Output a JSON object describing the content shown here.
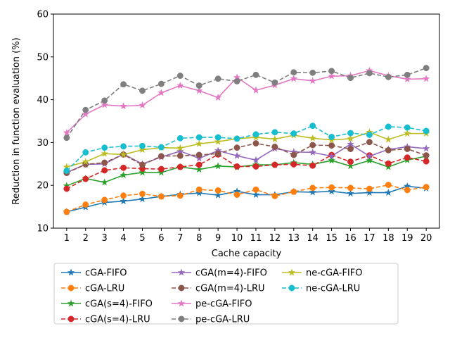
{
  "chart_data": {
    "type": "line",
    "title": "",
    "xlabel": "Cache capacity",
    "ylabel": "Reduction in function evaluation (%)",
    "x": [
      1,
      2,
      3,
      4,
      5,
      6,
      7,
      8,
      9,
      10,
      11,
      12,
      13,
      14,
      15,
      16,
      17,
      18,
      19,
      20
    ],
    "xlim": [
      0.3,
      20.7
    ],
    "ylim": [
      10,
      60
    ],
    "yticks": [
      10,
      20,
      30,
      40,
      50,
      60
    ],
    "grid": false,
    "legend_placement": "below plot, 3 columns",
    "series": [
      {
        "name": "cGA-FIFO",
        "color": "#1f77b4",
        "linestyle": "solid",
        "marker": "star",
        "values": [
          13.8,
          14.9,
          16.0,
          16.3,
          16.8,
          17.4,
          17.9,
          18.2,
          17.7,
          18.6,
          17.8,
          17.8,
          18.5,
          18.4,
          18.6,
          18.1,
          18.3,
          18.3,
          19.8,
          19.3
        ]
      },
      {
        "name": "cGA-LRU",
        "color": "#ff7f0e",
        "linestyle": "dashed",
        "marker": "circle",
        "values": [
          13.8,
          15.5,
          16.6,
          17.6,
          18.0,
          17.4,
          17.6,
          19.0,
          18.8,
          17.8,
          19.0,
          17.5,
          18.5,
          19.4,
          19.5,
          19.4,
          19.2,
          20.1,
          18.9,
          19.6
        ]
      },
      {
        "name": "cGA(s=4)-FIFO",
        "color": "#2ca02c",
        "linestyle": "solid",
        "marker": "star",
        "values": [
          19.9,
          21.6,
          20.7,
          22.4,
          23.0,
          23.0,
          24.3,
          23.7,
          24.5,
          24.3,
          24.8,
          24.8,
          25.3,
          24.9,
          25.8,
          24.5,
          25.8,
          24.3,
          25.9,
          26.8
        ]
      },
      {
        "name": "cGA(s=4)-LRU",
        "color": "#d62728",
        "linestyle": "dashed",
        "marker": "circle",
        "values": [
          19.2,
          21.5,
          23.5,
          24.1,
          23.9,
          23.8,
          24.3,
          24.8,
          27.2,
          24.4,
          24.4,
          24.8,
          24.9,
          24.6,
          27.1,
          25.5,
          27.0,
          25.1,
          26.5,
          25.6
        ]
      },
      {
        "name": "cGA(m=4)-FIFO",
        "color": "#9467bd",
        "linestyle": "solid",
        "marker": "star",
        "values": [
          23.0,
          24.9,
          25.0,
          27.3,
          25.0,
          26.6,
          28.0,
          26.3,
          28.1,
          26.9,
          25.9,
          28.6,
          27.8,
          27.7,
          26.8,
          29.6,
          26.8,
          28.4,
          29.0,
          28.6
        ]
      },
      {
        "name": "cGA(m=4)-LRU",
        "color": "#8c564b",
        "linestyle": "dashed",
        "marker": "circle",
        "values": [
          22.9,
          24.9,
          25.3,
          27.2,
          24.8,
          26.8,
          26.9,
          27.1,
          27.4,
          28.8,
          29.8,
          29.0,
          27.1,
          29.4,
          29.3,
          28.5,
          30.1,
          28.2,
          28.5,
          27.0
        ]
      },
      {
        "name": "pe-cGA-FIFO",
        "color": "#e377c2",
        "linestyle": "solid",
        "marker": "star",
        "values": [
          32.3,
          36.6,
          38.8,
          38.5,
          38.7,
          41.6,
          43.3,
          42.1,
          40.5,
          45.2,
          42.2,
          43.4,
          44.9,
          44.4,
          45.5,
          45.6,
          46.8,
          45.6,
          44.8,
          44.9
        ]
      },
      {
        "name": "pe-cGA-LRU",
        "color": "#7f7f7f",
        "linestyle": "dashed",
        "marker": "circle",
        "values": [
          31.1,
          37.6,
          39.8,
          43.6,
          42.1,
          43.7,
          45.6,
          43.3,
          44.9,
          44.3,
          45.8,
          44.0,
          46.4,
          46.3,
          46.7,
          45.1,
          46.2,
          45.3,
          45.8,
          47.4
        ]
      },
      {
        "name": "ne-cGA-FIFO",
        "color": "#bcbd22",
        "linestyle": "solid",
        "marker": "star",
        "values": [
          24.3,
          25.5,
          27.4,
          27.2,
          28.3,
          28.8,
          28.7,
          29.7,
          30.2,
          30.9,
          31.2,
          30.8,
          31.7,
          31.0,
          30.6,
          30.9,
          32.4,
          30.7,
          32.1,
          32.1
        ]
      },
      {
        "name": "ne-cGA-LRU",
        "color": "#17becf",
        "linestyle": "dashed",
        "marker": "circle",
        "values": [
          23.4,
          27.7,
          28.8,
          29.1,
          29.2,
          28.9,
          31.0,
          31.2,
          31.2,
          30.9,
          31.9,
          32.4,
          32.1,
          33.9,
          31.3,
          32.2,
          31.8,
          33.7,
          33.5,
          32.7
        ]
      }
    ]
  }
}
